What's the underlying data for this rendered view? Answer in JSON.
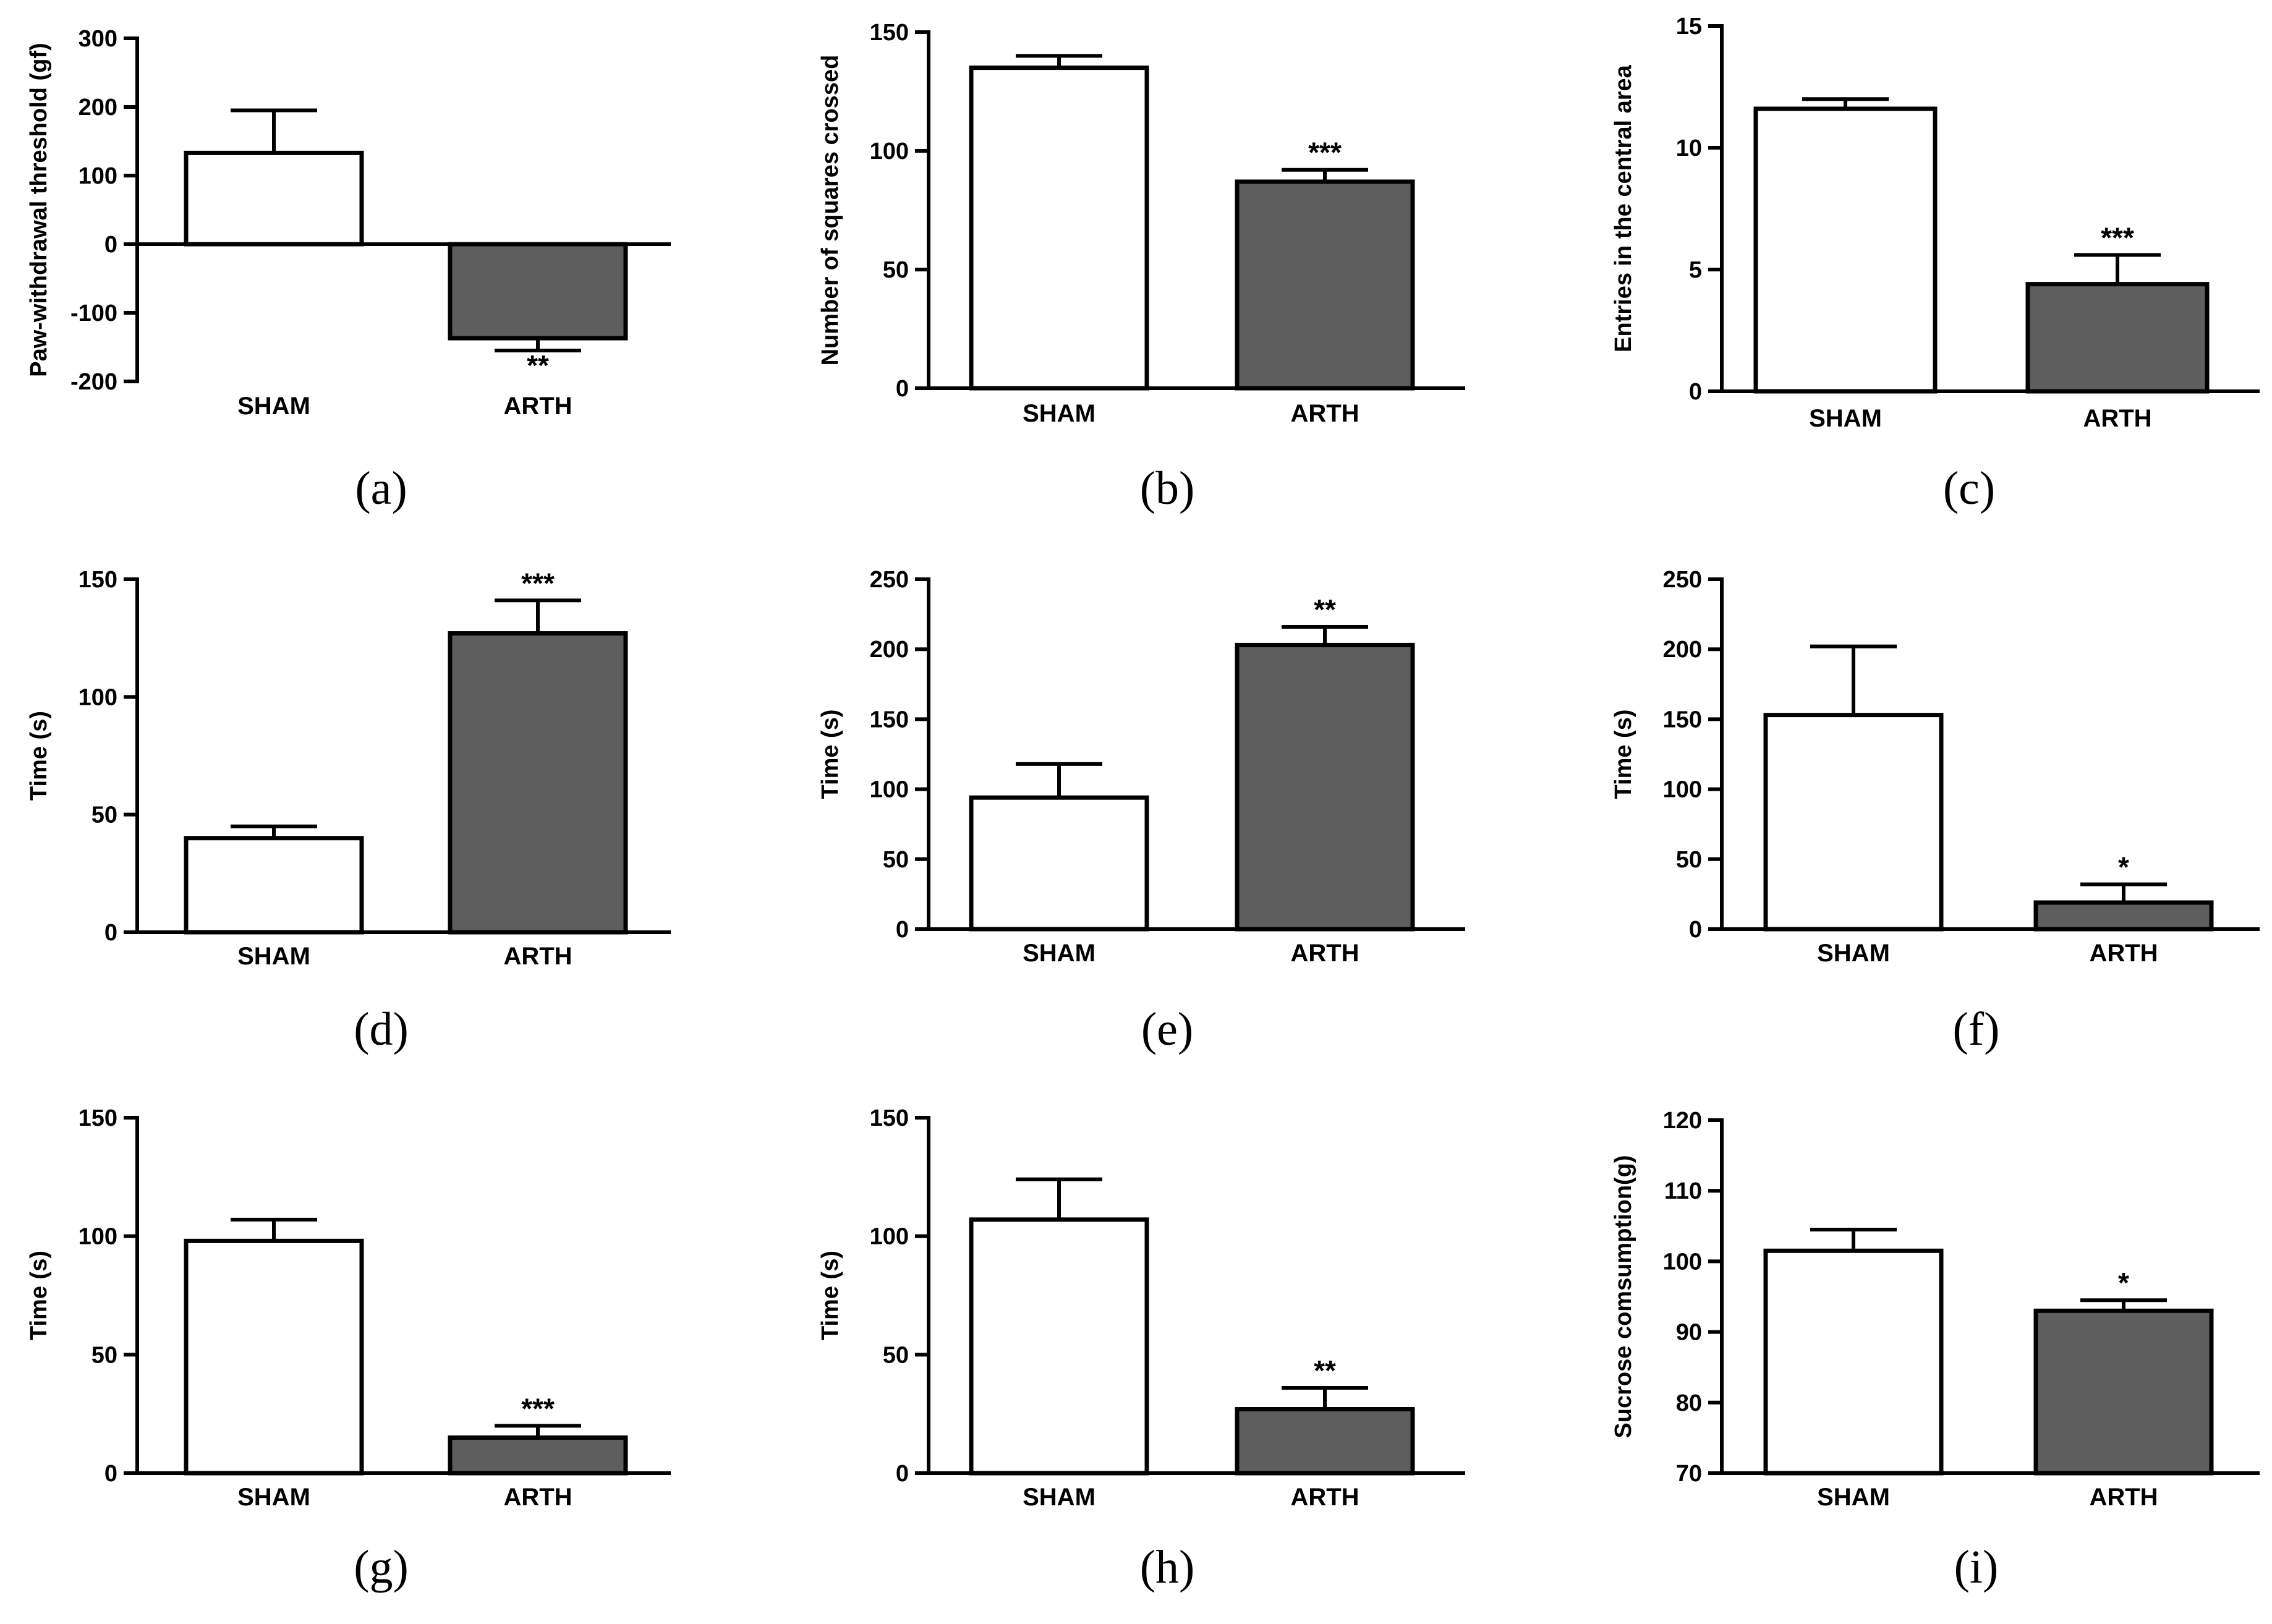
{
  "figure": {
    "colors": {
      "sham": "#ffffff",
      "arth": "#5e5e5e",
      "stroke": "#000000"
    }
  },
  "chart_data": [
    {
      "type": "bar",
      "panel": "(a)",
      "ylabel": "Paw-withdrawal threshold (gf)",
      "ylim": [
        -200,
        300
      ],
      "yticks": [
        -200,
        -100,
        0,
        100,
        200,
        300
      ],
      "categories": [
        "SHAM",
        "ARTH"
      ],
      "values": [
        133,
        -137
      ],
      "errors": [
        62,
        18
      ],
      "significance": [
        "",
        "**"
      ]
    },
    {
      "type": "bar",
      "panel": "(b)",
      "ylabel": "Number of squares crossed",
      "ylim": [
        0,
        150
      ],
      "yticks": [
        0,
        50,
        100,
        150
      ],
      "categories": [
        "SHAM",
        "ARTH"
      ],
      "values": [
        135,
        87
      ],
      "errors": [
        5,
        5
      ],
      "significance": [
        "",
        "***"
      ]
    },
    {
      "type": "bar",
      "panel": "(c)",
      "ylabel": "Entries in the central area",
      "ylim": [
        0,
        15
      ],
      "yticks": [
        0,
        5,
        10,
        15
      ],
      "categories": [
        "SHAM",
        "ARTH"
      ],
      "values": [
        11.6,
        4.4
      ],
      "errors": [
        0.4,
        1.2
      ],
      "significance": [
        "",
        "***"
      ]
    },
    {
      "type": "bar",
      "panel": "(d)",
      "ylabel": "Time (s)",
      "ylim": [
        0,
        150
      ],
      "yticks": [
        0,
        50,
        100,
        150
      ],
      "categories": [
        "SHAM",
        "ARTH"
      ],
      "values": [
        40,
        127
      ],
      "errors": [
        5,
        14
      ],
      "significance": [
        "",
        "***"
      ]
    },
    {
      "type": "bar",
      "panel": "(e)",
      "ylabel": "Time (s)",
      "ylim": [
        0,
        250
      ],
      "yticks": [
        0,
        50,
        100,
        150,
        200,
        250
      ],
      "categories": [
        "SHAM",
        "ARTH"
      ],
      "values": [
        94,
        203
      ],
      "errors": [
        24,
        13
      ],
      "significance": [
        "",
        "**"
      ]
    },
    {
      "type": "bar",
      "panel": "(f)",
      "ylabel": "Time (s)",
      "ylim": [
        0,
        250
      ],
      "yticks": [
        0,
        50,
        100,
        150,
        200,
        250
      ],
      "categories": [
        "SHAM",
        "ARTH"
      ],
      "values": [
        153,
        19
      ],
      "errors": [
        49,
        13
      ],
      "significance": [
        "",
        "*"
      ]
    },
    {
      "type": "bar",
      "panel": "(g)",
      "ylabel": "Time (s)",
      "ylim": [
        0,
        150
      ],
      "yticks": [
        0,
        50,
        100,
        150
      ],
      "categories": [
        "SHAM",
        "ARTH"
      ],
      "values": [
        98,
        15
      ],
      "errors": [
        9,
        5
      ],
      "significance": [
        "",
        "***"
      ]
    },
    {
      "type": "bar",
      "panel": "(h)",
      "ylabel": "Time (s)",
      "ylim": [
        0,
        150
      ],
      "yticks": [
        0,
        50,
        100,
        150
      ],
      "categories": [
        "SHAM",
        "ARTH"
      ],
      "values": [
        107,
        27
      ],
      "errors": [
        17,
        9
      ],
      "significance": [
        "",
        "**"
      ]
    },
    {
      "type": "bar",
      "panel": "(i)",
      "ylabel": "Sucrose comsumption(g)",
      "ylim": [
        70,
        120
      ],
      "yticks": [
        70,
        80,
        90,
        100,
        110,
        120
      ],
      "categories": [
        "SHAM",
        "ARTH"
      ],
      "values": [
        101.5,
        93
      ],
      "errors": [
        3,
        1.5
      ],
      "significance": [
        "",
        "*"
      ]
    }
  ]
}
